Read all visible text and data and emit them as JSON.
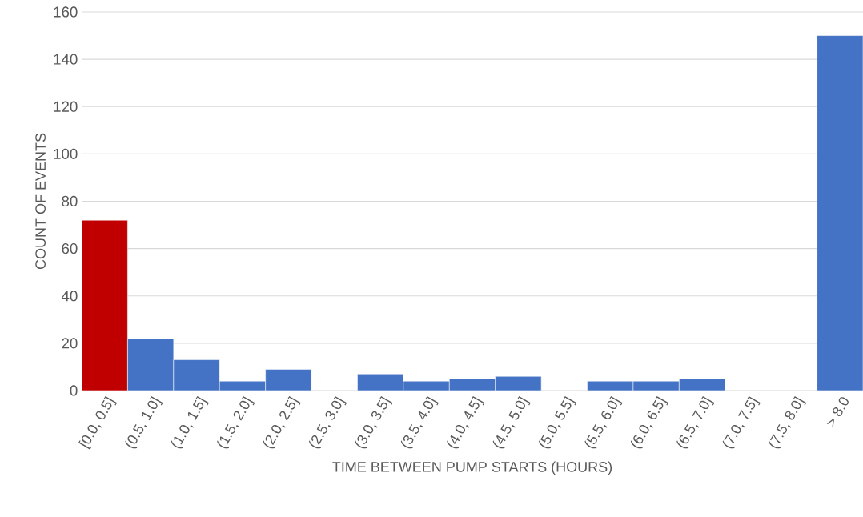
{
  "chart_data": {
    "type": "bar",
    "xlabel": "TIME BETWEEN PUMP STARTS (HOURS)",
    "ylabel": "COUNT OF EVENTS",
    "categories": [
      "[0.0, 0.5]",
      "(0.5, 1.0]",
      "(1.0, 1.5]",
      "(1.5, 2.0]",
      "(2.0, 2.5]",
      "(2.5, 3.0]",
      "(3.0, 3.5]",
      "(3.5, 4.0]",
      "(4.0, 4.5]",
      "(4.5, 5.0]",
      "(5.0, 5.5]",
      "(5.5, 6.0]",
      "(6.0, 6.5]",
      "(6.5, 7.0]",
      "(7.0, 7.5]",
      "(7.5, 8.0]",
      "> 8.0"
    ],
    "values": [
      72,
      22,
      13,
      4,
      9,
      0,
      7,
      4,
      5,
      6,
      0,
      4,
      4,
      5,
      0,
      0,
      150
    ],
    "colors": [
      "#c00000",
      "#4472c4",
      "#4472c4",
      "#4472c4",
      "#4472c4",
      "#4472c4",
      "#4472c4",
      "#4472c4",
      "#4472c4",
      "#4472c4",
      "#4472c4",
      "#4472c4",
      "#4472c4",
      "#4472c4",
      "#4472c4",
      "#4472c4",
      "#4472c4"
    ],
    "ylim": [
      0,
      160
    ],
    "yticks": [
      0,
      20,
      40,
      60,
      80,
      100,
      120,
      140,
      160
    ],
    "grid": "y"
  }
}
